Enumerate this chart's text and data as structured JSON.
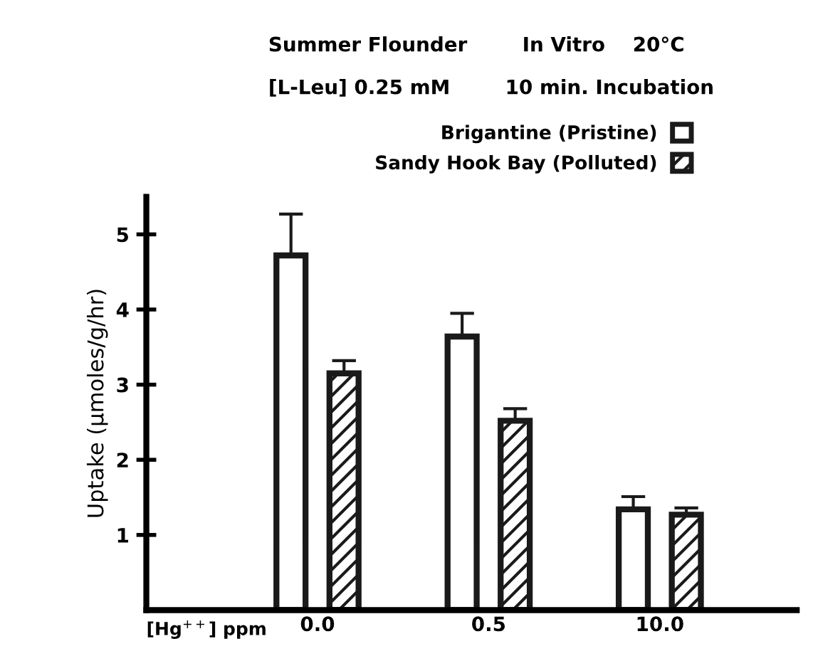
{
  "chart_data": {
    "type": "bar",
    "title": "Summer Flounder        In Vitro    20°C",
    "subtitle": "[L-Leu] 0.25 mM        10 min. Incubation",
    "xlabel": "[Hg$^{++}$] ppm",
    "ylabel": "Uptake (μmoles/g/hr)",
    "categories": [
      "0.0",
      "0.5",
      "10.0"
    ],
    "series": [
      {
        "name": "Brigantine (Pristine)",
        "color": "#1a1a1a",
        "values": [
          4.72,
          3.64,
          1.34
        ],
        "errors": [
          [
            4.72,
            5.27
          ],
          [
            3.64,
            3.95
          ],
          [
            1.34,
            1.51
          ]
        ]
      },
      {
        "name": "Sandy Hook Bay (Polluted)",
        "color": "#1a1a1a",
        "values": [
          3.15,
          2.52,
          1.27
        ],
        "errors": [
          [
            3.15,
            3.32
          ],
          [
            2.52,
            2.68
          ],
          [
            1.27,
            1.36
          ]
        ]
      }
    ],
    "ylim": [
      0,
      5.5
    ],
    "yticks": [
      1,
      2,
      3,
      4,
      5
    ],
    "grid": false,
    "legend": "top"
  }
}
